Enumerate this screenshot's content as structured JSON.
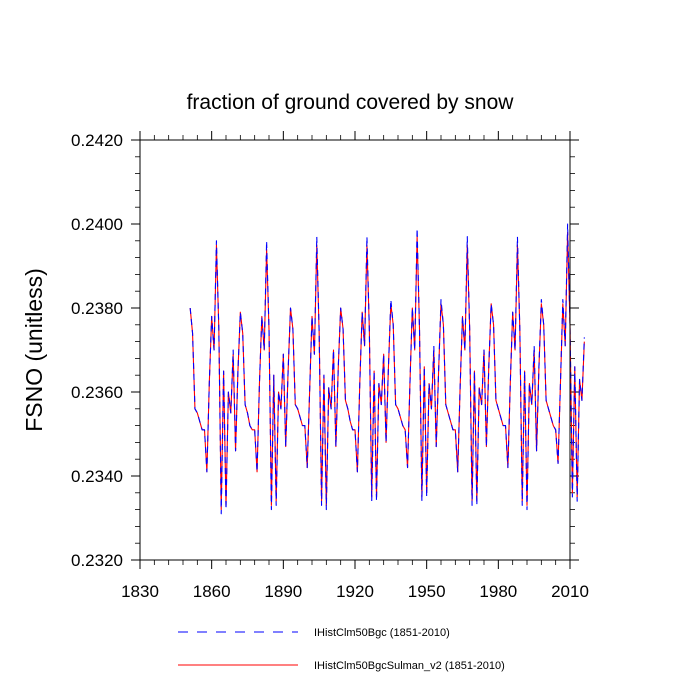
{
  "chart_data": {
    "type": "line",
    "title": "fraction of ground covered by snow",
    "xlabel": "",
    "ylabel": "FSNO  (unitless)",
    "xlim": [
      1830,
      2010
    ],
    "ylim": [
      0.232,
      0.242
    ],
    "xticks": [
      1830,
      1860,
      1890,
      1920,
      1950,
      1980,
      2010
    ],
    "yticks": [
      "0.2320",
      "0.2340",
      "0.2360",
      "0.2380",
      "0.2400",
      "0.2420"
    ],
    "yticks_values": [
      0.232,
      0.234,
      0.236,
      0.238,
      0.24,
      0.242
    ],
    "grid": false,
    "legend_position": "bottom",
    "x_start": 1851,
    "series": [
      {
        "name": "IHistClm50Bgc (1851-2010)",
        "color": "#0000ff",
        "style": "dashed",
        "values": [
          0.238,
          0.2374,
          0.2356,
          0.2355,
          0.2353,
          0.2351,
          0.2351,
          0.2341,
          0.2362,
          0.2378,
          0.237,
          0.2396,
          0.2375,
          0.2331,
          0.2365,
          0.2332,
          0.236,
          0.2355,
          0.237,
          0.2346,
          0.2365,
          0.2379,
          0.2374,
          0.2357,
          0.2355,
          0.2352,
          0.2351,
          0.2351,
          0.2341,
          0.2362,
          0.2378,
          0.237,
          0.2396,
          0.2375,
          0.2332,
          0.2364,
          0.2333,
          0.236,
          0.2356,
          0.2369,
          0.2347,
          0.2365,
          0.238,
          0.2375,
          0.2357,
          0.2356,
          0.2354,
          0.2352,
          0.2352,
          0.2342,
          0.236,
          0.2378,
          0.2369,
          0.2397,
          0.2374,
          0.2333,
          0.2364,
          0.2332,
          0.2361,
          0.2356,
          0.237,
          0.2347,
          0.2366,
          0.238,
          0.2375,
          0.2358,
          0.2356,
          0.2353,
          0.2351,
          0.2351,
          0.2341,
          0.2362,
          0.2379,
          0.2371,
          0.2397,
          0.2375,
          0.2334,
          0.2365,
          0.2334,
          0.2362,
          0.2357,
          0.2369,
          0.2348,
          0.2366,
          0.2382,
          0.2376,
          0.2357,
          0.2356,
          0.2354,
          0.2352,
          0.2351,
          0.2342,
          0.2362,
          0.238,
          0.237,
          0.2399,
          0.2375,
          0.2334,
          0.2366,
          0.2335,
          0.2362,
          0.2356,
          0.2371,
          0.2347,
          0.2365,
          0.2382,
          0.2376,
          0.2357,
          0.2355,
          0.2353,
          0.2351,
          0.2351,
          0.2341,
          0.2361,
          0.2378,
          0.237,
          0.2397,
          0.2375,
          0.2333,
          0.2365,
          0.2333,
          0.2361,
          0.2357,
          0.237,
          0.2347,
          0.2366,
          0.2381,
          0.2376,
          0.2358,
          0.2356,
          0.2354,
          0.2352,
          0.2352,
          0.2342,
          0.2362,
          0.2379,
          0.237,
          0.2397,
          0.2375,
          0.2333,
          0.2365,
          0.2332,
          0.2362,
          0.2357,
          0.2371,
          0.2346,
          0.2366,
          0.2382,
          0.2376,
          0.2358,
          0.2356,
          0.2354,
          0.2352,
          0.2351,
          0.2343,
          0.2362,
          0.2382,
          0.2371,
          0.24,
          0.2376,
          0.2335,
          0.2366,
          0.2334,
          0.2363,
          0.2358,
          0.2373
        ]
      },
      {
        "name": "IHistClm50BgcSulman_v2 (1851-2010)",
        "color": "#ff0000",
        "style": "solid",
        "values": [
          0.238,
          0.2374,
          0.2356,
          0.2355,
          0.2353,
          0.2351,
          0.2351,
          0.2341,
          0.2362,
          0.2378,
          0.237,
          0.2395,
          0.2375,
          0.2332,
          0.2365,
          0.2333,
          0.236,
          0.2355,
          0.2369,
          0.2346,
          0.2365,
          0.2379,
          0.2374,
          0.2357,
          0.2355,
          0.2352,
          0.2351,
          0.2351,
          0.2341,
          0.2362,
          0.2378,
          0.237,
          0.2394,
          0.2375,
          0.2333,
          0.2364,
          0.2334,
          0.236,
          0.2356,
          0.2369,
          0.2347,
          0.2365,
          0.238,
          0.2375,
          0.2357,
          0.2356,
          0.2354,
          0.2352,
          0.2352,
          0.2342,
          0.236,
          0.2378,
          0.2369,
          0.2395,
          0.2374,
          0.2334,
          0.2364,
          0.2333,
          0.2361,
          0.2356,
          0.237,
          0.2347,
          0.2366,
          0.238,
          0.2375,
          0.2358,
          0.2356,
          0.2353,
          0.2351,
          0.2351,
          0.2341,
          0.2362,
          0.2379,
          0.2371,
          0.2395,
          0.2375,
          0.2335,
          0.2365,
          0.2335,
          0.2362,
          0.2357,
          0.2369,
          0.2348,
          0.2366,
          0.2381,
          0.2376,
          0.2357,
          0.2356,
          0.2354,
          0.2352,
          0.2351,
          0.2342,
          0.2362,
          0.238,
          0.237,
          0.2397,
          0.2375,
          0.2335,
          0.2366,
          0.2336,
          0.2362,
          0.2356,
          0.237,
          0.2347,
          0.2365,
          0.2381,
          0.2376,
          0.2357,
          0.2355,
          0.2353,
          0.2351,
          0.2351,
          0.2341,
          0.2361,
          0.2378,
          0.237,
          0.2395,
          0.2375,
          0.2334,
          0.2365,
          0.2334,
          0.2361,
          0.2357,
          0.237,
          0.2347,
          0.2366,
          0.2381,
          0.2376,
          0.2358,
          0.2356,
          0.2354,
          0.2352,
          0.2352,
          0.2342,
          0.2362,
          0.2379,
          0.237,
          0.2395,
          0.2375,
          0.2334,
          0.2365,
          0.2333,
          0.2362,
          0.2357,
          0.237,
          0.2346,
          0.2366,
          0.2381,
          0.2376,
          0.2358,
          0.2356,
          0.2354,
          0.2352,
          0.2351,
          0.2343,
          0.2362,
          0.2381,
          0.2371,
          0.2398,
          0.2376,
          0.2336,
          0.2366,
          0.2335,
          0.2363,
          0.2358,
          0.2372
        ]
      }
    ]
  }
}
